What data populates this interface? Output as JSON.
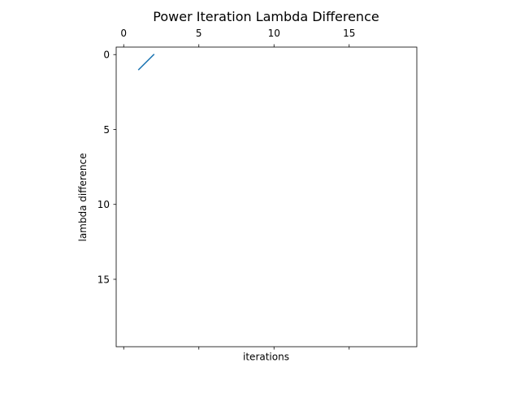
{
  "chart_data": {
    "type": "line",
    "title": "Power Iteration Lambda Difference",
    "xlabel": "iterations",
    "ylabel": "lambda difference",
    "xlim": [
      -0.5,
      19.5
    ],
    "ylim": [
      19.5,
      -0.5
    ],
    "y_inverted": true,
    "x_ticks": [
      0,
      5,
      10,
      15
    ],
    "x_tick_labels": [
      "0",
      "5",
      "10",
      "15"
    ],
    "x_tick_labels_position": "top",
    "y_ticks": [
      0,
      5,
      10,
      15
    ],
    "y_tick_labels": [
      "0",
      "5",
      "10",
      "15"
    ],
    "grid": false,
    "legend": "none",
    "series": [
      {
        "color": "#1f77b4",
        "x": [
          1,
          2
        ],
        "y": [
          1,
          0
        ]
      }
    ]
  }
}
